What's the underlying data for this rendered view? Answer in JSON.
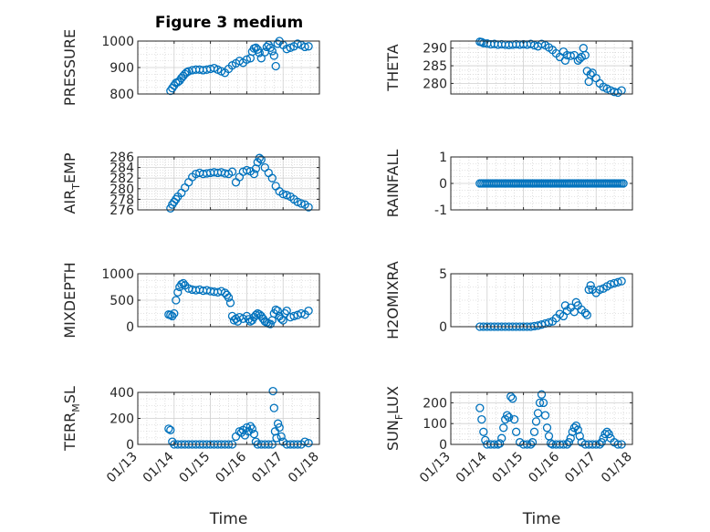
{
  "figure": {
    "title": "Figure 3 medium",
    "x_axis_label": "Time",
    "x_ticks": [
      "01/13",
      "01/14",
      "01/15",
      "01/16",
      "01/17",
      "01/18"
    ],
    "marker_color": "#0072BD",
    "marker": "circle"
  },
  "chart_data": [
    {
      "type": "scatter",
      "panel": "top-left",
      "ylabel": "PRESSURE",
      "xlim": [
        13,
        18
      ],
      "ylim": [
        800,
        1000
      ],
      "yticks": [
        "800",
        "900",
        "1000"
      ],
      "x": [
        13.9,
        13.95,
        14.0,
        14.05,
        14.1,
        14.15,
        14.2,
        14.25,
        14.3,
        14.35,
        14.4,
        14.5,
        14.6,
        14.7,
        14.8,
        14.9,
        15.0,
        15.1,
        15.2,
        15.3,
        15.4,
        15.5,
        15.6,
        15.7,
        15.8,
        15.9,
        16.0,
        16.1,
        16.15,
        16.2,
        16.25,
        16.3,
        16.35,
        16.4,
        16.5,
        16.55,
        16.6,
        16.65,
        16.7,
        16.75,
        16.8,
        16.85,
        16.9,
        17.0,
        17.1,
        17.2,
        17.3,
        17.4,
        17.5,
        17.6,
        17.7
      ],
      "y": [
        812,
        822,
        832,
        842,
        845,
        850,
        860,
        868,
        876,
        882,
        886,
        890,
        892,
        892,
        890,
        892,
        895,
        898,
        892,
        886,
        880,
        895,
        908,
        916,
        925,
        918,
        930,
        935,
        960,
        972,
        975,
        968,
        955,
        935,
        958,
        978,
        985,
        975,
        962,
        945,
        905,
        990,
        1000,
        985,
        970,
        975,
        980,
        990,
        985,
        978,
        980
      ]
    },
    {
      "type": "scatter",
      "panel": "top-right",
      "ylabel": "THETA",
      "xlim": [
        13,
        18
      ],
      "ylim": [
        277,
        292
      ],
      "yticks": [
        "280",
        "285",
        "290"
      ],
      "x": [
        13.8,
        13.85,
        13.9,
        14.0,
        14.1,
        14.2,
        14.3,
        14.4,
        14.5,
        14.6,
        14.7,
        14.8,
        14.9,
        15.0,
        15.1,
        15.2,
        15.3,
        15.4,
        15.5,
        15.6,
        15.7,
        15.8,
        15.9,
        16.0,
        16.1,
        16.15,
        16.2,
        16.3,
        16.4,
        16.5,
        16.55,
        16.6,
        16.65,
        16.7,
        16.75,
        16.8,
        16.85,
        16.9,
        17.0,
        17.1,
        17.2,
        17.3,
        17.4,
        17.5,
        17.6,
        17.7
      ],
      "y": [
        291.8,
        291.7,
        291.4,
        291.3,
        291.1,
        291.2,
        291.0,
        291.1,
        291.0,
        290.9,
        291.0,
        291.1,
        291.0,
        291.1,
        291.0,
        291.2,
        290.8,
        290.5,
        291.2,
        290.8,
        290.2,
        289.5,
        288.5,
        287.5,
        289.0,
        286.5,
        288.0,
        287.8,
        288.0,
        286.5,
        287.0,
        287.5,
        290.0,
        288.0,
        283.5,
        280.5,
        282.5,
        283.0,
        281.5,
        280.0,
        279.0,
        278.5,
        278.0,
        277.6,
        277.4,
        278.0
      ]
    },
    {
      "type": "scatter",
      "panel": "second-left",
      "ylabel": "AIR_TEMP",
      "xlim": [
        13,
        18
      ],
      "ylim": [
        276,
        286
      ],
      "yticks": [
        "276",
        "278",
        "280",
        "282",
        "284",
        "286"
      ],
      "x": [
        13.9,
        13.95,
        14.0,
        14.05,
        14.1,
        14.2,
        14.3,
        14.4,
        14.5,
        14.6,
        14.7,
        14.8,
        14.9,
        15.0,
        15.1,
        15.2,
        15.3,
        15.4,
        15.5,
        15.6,
        15.7,
        15.8,
        15.9,
        16.0,
        16.1,
        16.2,
        16.25,
        16.3,
        16.35,
        16.4,
        16.5,
        16.6,
        16.7,
        16.8,
        16.9,
        17.0,
        17.1,
        17.2,
        17.3,
        17.4,
        17.5,
        17.6,
        17.7
      ],
      "y": [
        276.3,
        277.0,
        277.5,
        278.0,
        278.5,
        279.2,
        280.2,
        281.2,
        282.2,
        282.8,
        283.0,
        282.8,
        282.9,
        283.0,
        283.1,
        283.0,
        283.1,
        282.9,
        282.8,
        283.2,
        281.2,
        282.2,
        283.2,
        283.5,
        283.3,
        282.8,
        283.8,
        285.0,
        285.8,
        285.5,
        284.0,
        283.0,
        282.0,
        280.5,
        279.5,
        279.0,
        278.8,
        278.5,
        278.0,
        277.5,
        277.2,
        277.0,
        276.5
      ]
    },
    {
      "type": "scatter",
      "panel": "second-right",
      "ylabel": "RAINFALL",
      "xlim": [
        13,
        18
      ],
      "ylim": [
        -1,
        1
      ],
      "yticks": [
        "-1",
        "0",
        "1"
      ],
      "x_start": 13.8,
      "x_end": 17.75,
      "x_step": 0.05,
      "constant_y": 0
    },
    {
      "type": "scatter",
      "panel": "third-left",
      "ylabel": "MIXDEPTH",
      "xlim": [
        13,
        18
      ],
      "ylim": [
        0,
        1000
      ],
      "yticks": [
        "0",
        "500",
        "1000"
      ],
      "x": [
        13.85,
        13.9,
        13.95,
        14.0,
        14.05,
        14.1,
        14.15,
        14.2,
        14.25,
        14.3,
        14.4,
        14.5,
        14.6,
        14.7,
        14.8,
        14.9,
        15.0,
        15.1,
        15.2,
        15.3,
        15.4,
        15.45,
        15.5,
        15.55,
        15.6,
        15.65,
        15.7,
        15.75,
        15.8,
        15.9,
        16.0,
        16.05,
        16.1,
        16.15,
        16.2,
        16.25,
        16.3,
        16.35,
        16.4,
        16.45,
        16.5,
        16.55,
        16.6,
        16.65,
        16.7,
        16.75,
        16.8,
        16.85,
        16.9,
        16.95,
        17.0,
        17.05,
        17.1,
        17.2,
        17.3,
        17.4,
        17.5,
        17.6,
        17.7
      ],
      "y": [
        230,
        220,
        200,
        250,
        500,
        650,
        750,
        800,
        820,
        780,
        720,
        700,
        690,
        700,
        680,
        690,
        670,
        660,
        650,
        670,
        640,
        600,
        550,
        450,
        200,
        120,
        150,
        100,
        180,
        150,
        200,
        140,
        100,
        120,
        180,
        220,
        250,
        230,
        200,
        150,
        100,
        80,
        60,
        50,
        120,
        250,
        320,
        300,
        200,
        150,
        120,
        250,
        300,
        180,
        200,
        220,
        250,
        230,
        300
      ]
    },
    {
      "type": "scatter",
      "panel": "third-right",
      "ylabel": "H2OMIXRA",
      "xlim": [
        13,
        18
      ],
      "ylim": [
        0,
        5
      ],
      "yticks": [
        "0",
        "5"
      ],
      "x": [
        13.8,
        13.9,
        14.0,
        14.1,
        14.2,
        14.3,
        14.4,
        14.5,
        14.6,
        14.7,
        14.8,
        14.9,
        15.0,
        15.1,
        15.2,
        15.3,
        15.4,
        15.5,
        15.6,
        15.7,
        15.8,
        15.9,
        16.0,
        16.1,
        16.15,
        16.2,
        16.3,
        16.4,
        16.45,
        16.5,
        16.6,
        16.7,
        16.75,
        16.8,
        16.85,
        16.9,
        17.0,
        17.1,
        17.2,
        17.3,
        17.4,
        17.5,
        17.6,
        17.7
      ],
      "y": [
        0,
        0,
        0,
        0,
        0,
        0,
        0,
        0,
        0,
        0,
        0,
        0,
        0,
        0,
        0,
        0.05,
        0.1,
        0.2,
        0.3,
        0.4,
        0.5,
        0.8,
        1.2,
        1.0,
        2.0,
        1.5,
        1.8,
        1.4,
        2.3,
        2.0,
        1.6,
        1.3,
        1.1,
        3.5,
        3.9,
        3.5,
        3.2,
        3.5,
        3.6,
        3.8,
        4.0,
        4.1,
        4.2,
        4.3
      ]
    },
    {
      "type": "scatter",
      "panel": "bottom-left",
      "ylabel": "TERR_MSL",
      "xlim": [
        13,
        18
      ],
      "ylim": [
        0,
        400
      ],
      "yticks": [
        "0",
        "200",
        "400"
      ],
      "x": [
        13.85,
        13.9,
        13.95,
        14.0,
        14.1,
        14.2,
        14.3,
        14.4,
        14.5,
        14.6,
        14.7,
        14.8,
        14.9,
        15.0,
        15.1,
        15.2,
        15.3,
        15.4,
        15.5,
        15.6,
        15.7,
        15.8,
        15.85,
        15.9,
        15.95,
        16.0,
        16.05,
        16.1,
        16.15,
        16.2,
        16.25,
        16.3,
        16.4,
        16.5,
        16.6,
        16.7,
        16.72,
        16.75,
        16.78,
        16.82,
        16.86,
        16.9,
        16.95,
        17.0,
        17.1,
        17.2,
        17.3,
        17.4,
        17.5,
        17.6,
        17.7
      ],
      "y": [
        120,
        110,
        20,
        0,
        0,
        0,
        0,
        0,
        0,
        0,
        0,
        0,
        0,
        0,
        0,
        0,
        0,
        0,
        0,
        0,
        60,
        100,
        90,
        110,
        70,
        130,
        100,
        140,
        120,
        80,
        20,
        0,
        0,
        0,
        0,
        0,
        410,
        280,
        100,
        50,
        160,
        130,
        60,
        20,
        0,
        0,
        0,
        0,
        0,
        20,
        10
      ]
    },
    {
      "type": "scatter",
      "panel": "bottom-right",
      "ylabel": "SUN_FLUX",
      "xlim": [
        13,
        18
      ],
      "ylim": [
        0,
        250
      ],
      "yticks": [
        "0",
        "100",
        "200"
      ],
      "x": [
        13.8,
        13.85,
        13.9,
        13.95,
        14.0,
        14.1,
        14.2,
        14.3,
        14.35,
        14.4,
        14.45,
        14.5,
        14.55,
        14.6,
        14.65,
        14.7,
        14.75,
        14.8,
        14.9,
        15.0,
        15.1,
        15.2,
        15.25,
        15.3,
        15.35,
        15.4,
        15.45,
        15.5,
        15.55,
        15.6,
        15.65,
        15.7,
        15.75,
        15.8,
        15.9,
        16.0,
        16.1,
        16.2,
        16.25,
        16.3,
        16.35,
        16.4,
        16.45,
        16.5,
        16.55,
        16.6,
        16.7,
        16.8,
        16.9,
        17.0,
        17.1,
        17.15,
        17.2,
        17.25,
        17.3,
        17.35,
        17.4,
        17.5,
        17.6,
        17.7
      ],
      "y": [
        175,
        120,
        60,
        20,
        0,
        0,
        0,
        0,
        5,
        30,
        80,
        120,
        140,
        130,
        230,
        220,
        120,
        60,
        10,
        0,
        0,
        0,
        10,
        60,
        110,
        150,
        200,
        240,
        200,
        140,
        80,
        40,
        5,
        0,
        0,
        0,
        0,
        0,
        10,
        30,
        60,
        80,
        90,
        70,
        40,
        10,
        0,
        0,
        0,
        0,
        0,
        10,
        30,
        50,
        60,
        50,
        30,
        10,
        0,
        0
      ]
    }
  ]
}
